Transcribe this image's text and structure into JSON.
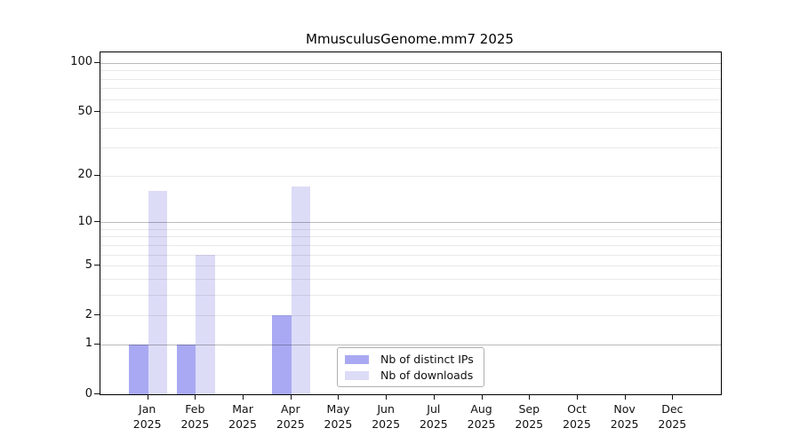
{
  "title": "MmusculusGenome.mm7 2025",
  "colors": {
    "distinct_ips_bar": "#a9a9f3",
    "downloads_bar": "#dcdcf7",
    "grid_major": "#bdbdbd",
    "grid_minor": "#ebebeb",
    "frame": "#000000",
    "background": "#ffffff"
  },
  "chart_data": {
    "type": "bar",
    "title": "MmusculusGenome.mm7 2025",
    "yscale": "log1p",
    "grid": true,
    "ylim": [
      0,
      116
    ],
    "yticks": [
      0,
      1,
      2,
      5,
      10,
      20,
      50,
      100
    ],
    "major_gridlines": [
      1,
      10,
      100
    ],
    "minor_gridlines": [
      2,
      3,
      4,
      5,
      6,
      7,
      8,
      9,
      20,
      30,
      40,
      50,
      60,
      70,
      80,
      90
    ],
    "categories": [
      {
        "month": "Jan",
        "year": "2025"
      },
      {
        "month": "Feb",
        "year": "2025"
      },
      {
        "month": "Mar",
        "year": "2025"
      },
      {
        "month": "Apr",
        "year": "2025"
      },
      {
        "month": "May",
        "year": "2025"
      },
      {
        "month": "Jun",
        "year": "2025"
      },
      {
        "month": "Jul",
        "year": "2025"
      },
      {
        "month": "Aug",
        "year": "2025"
      },
      {
        "month": "Sep",
        "year": "2025"
      },
      {
        "month": "Oct",
        "year": "2025"
      },
      {
        "month": "Nov",
        "year": "2025"
      },
      {
        "month": "Dec",
        "year": "2025"
      }
    ],
    "series": [
      {
        "name": "Nb of distinct IPs",
        "color": "#a9a9f3",
        "values": [
          1,
          1,
          0,
          2,
          0,
          0,
          0,
          0,
          0,
          0,
          0,
          0
        ]
      },
      {
        "name": "Nb of downloads",
        "color": "#dcdcf7",
        "values": [
          16,
          6,
          0,
          17,
          0,
          0,
          0,
          0,
          0,
          0,
          0,
          0
        ]
      }
    ],
    "legend": {
      "position": "inside lower center-right"
    }
  }
}
